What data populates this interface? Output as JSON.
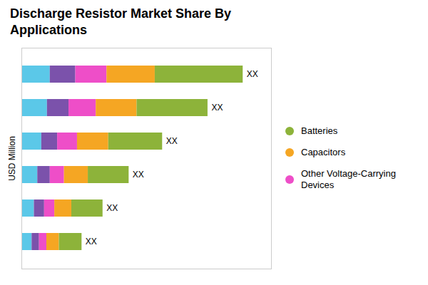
{
  "chart_data": {
    "type": "bar",
    "title": "Discharge Resistor Market Share By\nApplications",
    "ylabel": "USD Million",
    "orientation": "horizontal",
    "stacked": true,
    "categories": [
      null,
      null,
      null,
      null,
      null,
      null
    ],
    "series": [
      {
        "name": null,
        "color": "#5BC8E8",
        "values": [
          0.5,
          0.45,
          0.35,
          0.28,
          0.22,
          0.18
        ]
      },
      {
        "name": null,
        "color": "#7B52AB",
        "values": [
          0.45,
          0.38,
          0.28,
          0.22,
          0.18,
          0.13
        ]
      },
      {
        "name": "Other Voltage-Carrying\nDevices",
        "color": "#EE4EC8",
        "values": [
          0.55,
          0.48,
          0.35,
          0.25,
          0.18,
          0.13
        ]
      },
      {
        "name": "Capacitors",
        "color": "#F5A623",
        "values": [
          0.85,
          0.72,
          0.55,
          0.42,
          0.3,
          0.22
        ]
      },
      {
        "name": "Batteries",
        "color": "#8DB33A",
        "values": [
          1.55,
          1.25,
          0.95,
          0.72,
          0.55,
          0.4
        ]
      }
    ],
    "annotations": [
      "XX",
      "XX",
      "XX",
      "XX",
      "XX",
      "XX"
    ],
    "xlim": [
      0,
      4.4
    ],
    "xticks": [],
    "tick_labels": false,
    "grid": false,
    "legend": "right"
  }
}
